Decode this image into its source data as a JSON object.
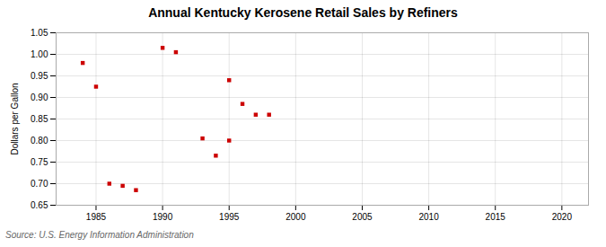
{
  "chart_data": {
    "type": "scatter",
    "title": "Annual Kentucky Kerosene Retail Sales by Refiners",
    "ylabel": "Dollars per Gallon",
    "source": "Source: U.S. Energy Information Administration",
    "x": [
      1984,
      1985,
      1986,
      1987,
      1988,
      1990,
      1991,
      1993,
      1994,
      1995,
      1995,
      1996,
      1997,
      1998
    ],
    "values": [
      0.98,
      0.925,
      0.7,
      0.695,
      0.685,
      1.015,
      1.005,
      0.805,
      0.765,
      0.8,
      0.94,
      0.885,
      0.86,
      0.86
    ],
    "color": "#cc0000",
    "marker": "square",
    "xlim": [
      1982,
      2022
    ],
    "xticks": [
      1985,
      1990,
      1995,
      2000,
      2005,
      2010,
      2015,
      2020
    ],
    "ylim": [
      0.65,
      1.05
    ],
    "yticks": [
      0.65,
      {
        "value": 0.7,
        "label": "0.70"
      },
      0.75,
      {
        "value": 0.8,
        "label": "0.80"
      },
      0.85,
      {
        "value": 0.9,
        "label": "0.90"
      },
      0.95,
      {
        "value": 1.0,
        "label": "1.00"
      },
      1.05
    ],
    "grid": true
  }
}
